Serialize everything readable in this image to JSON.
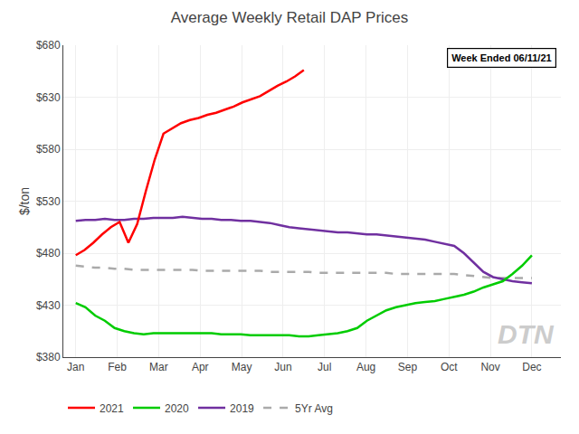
{
  "chart_data": {
    "type": "line",
    "title": "Average Weekly Retail DAP Prices",
    "ylabel": "$/ton",
    "annotations": [
      "Week Ended 06/11/21",
      "DTN"
    ],
    "xlim": [
      -0.3,
      11.7
    ],
    "xticks": [
      {
        "value": 0,
        "label": "Jan"
      },
      {
        "value": 1,
        "label": "Feb"
      },
      {
        "value": 2,
        "label": "Mar"
      },
      {
        "value": 3,
        "label": "Apr"
      },
      {
        "value": 4,
        "label": "May"
      },
      {
        "value": 5,
        "label": "Jun"
      },
      {
        "value": 6,
        "label": "Jul"
      },
      {
        "value": 7,
        "label": "Aug"
      },
      {
        "value": 8,
        "label": "Sep"
      },
      {
        "value": 9,
        "label": "Oct"
      },
      {
        "value": 10,
        "label": "Nov"
      },
      {
        "value": 11,
        "label": "Dec"
      }
    ],
    "ylim": [
      380,
      680
    ],
    "yticks": [
      {
        "value": 380,
        "label": "$380"
      },
      {
        "value": 430,
        "label": "$430"
      },
      {
        "value": 480,
        "label": "$480"
      },
      {
        "value": 530,
        "label": "$530"
      },
      {
        "value": 580,
        "label": "$580"
      },
      {
        "value": 630,
        "label": "$630"
      },
      {
        "value": 680,
        "label": "$680"
      }
    ],
    "grid": true,
    "series": [
      {
        "name": "2021",
        "color": "#ff0000",
        "line_style": "solid",
        "x": [
          0,
          0.2115,
          0.4231,
          0.6346,
          0.8462,
          1.0577,
          1.2692,
          1.4808,
          1.6923,
          1.9038,
          2.1154,
          2.3269,
          2.5385,
          2.75,
          2.9615,
          3.1731,
          3.3846,
          3.5962,
          3.8077,
          4.0192,
          4.2308,
          4.4423,
          4.6538,
          4.8654,
          5.0769,
          5.2885,
          5.5
        ],
        "values": [
          478,
          483,
          490,
          498,
          505,
          510,
          490,
          508,
          540,
          570,
          595,
          600,
          605,
          608,
          610,
          613,
          615,
          618,
          621,
          625,
          628,
          631,
          636,
          641,
          645,
          650,
          656
        ]
      },
      {
        "name": "2020",
        "color": "#00cc00",
        "line_style": "solid",
        "x": [
          0,
          0.234,
          0.4681,
          0.7021,
          0.9362,
          1.1702,
          1.4043,
          1.6383,
          1.8723,
          2.1064,
          2.3404,
          2.5745,
          2.8085,
          3.0426,
          3.2766,
          3.5106,
          3.7447,
          3.9787,
          4.2128,
          4.4468,
          4.6809,
          4.9149,
          5.1489,
          5.383,
          5.617,
          5.8511,
          6.0851,
          6.3191,
          6.5532,
          6.7872,
          7.0213,
          7.2553,
          7.4894,
          7.7234,
          7.9574,
          8.1915,
          8.4255,
          8.6596,
          8.8936,
          9.1277,
          9.3617,
          9.5957,
          9.8298,
          10.0638,
          10.2979,
          10.5319,
          10.766,
          11
        ],
        "values": [
          432,
          428,
          420,
          415,
          408,
          405,
          403,
          402,
          403,
          403,
          403,
          403,
          403,
          403,
          403,
          402,
          402,
          402,
          401,
          401,
          401,
          401,
          401,
          400,
          400,
          401,
          402,
          403,
          405,
          408,
          415,
          420,
          425,
          428,
          430,
          432,
          433,
          434,
          436,
          438,
          440,
          443,
          447,
          450,
          453,
          460,
          468,
          478
        ]
      },
      {
        "name": "2019",
        "color": "#7030a0",
        "line_style": "solid",
        "x": [
          0,
          0.234,
          0.4681,
          0.7021,
          0.9362,
          1.1702,
          1.4043,
          1.6383,
          1.8723,
          2.1064,
          2.3404,
          2.5745,
          2.8085,
          3.0426,
          3.2766,
          3.5106,
          3.7447,
          3.9787,
          4.2128,
          4.4468,
          4.6809,
          4.9149,
          5.1489,
          5.383,
          5.617,
          5.8511,
          6.0851,
          6.3191,
          6.5532,
          6.7872,
          7.0213,
          7.2553,
          7.4894,
          7.7234,
          7.9574,
          8.1915,
          8.4255,
          8.6596,
          8.8936,
          9.1277,
          9.3617,
          9.5957,
          9.8298,
          10.0638,
          10.2979,
          10.5319,
          10.766,
          11
        ],
        "values": [
          511,
          512,
          512,
          513,
          512,
          512,
          513,
          513,
          514,
          514,
          514,
          515,
          514,
          513,
          513,
          512,
          512,
          511,
          511,
          510,
          509,
          507,
          505,
          504,
          503,
          502,
          501,
          500,
          500,
          499,
          498,
          498,
          497,
          496,
          495,
          494,
          493,
          491,
          489,
          487,
          480,
          471,
          462,
          457,
          455,
          453,
          452,
          451
        ]
      },
      {
        "name": "5Yr Avg",
        "color": "#aaaaaa",
        "line_style": "dashed",
        "x": [
          0,
          0.234,
          0.4681,
          0.7021,
          0.9362,
          1.1702,
          1.4043,
          1.6383,
          1.8723,
          2.1064,
          2.3404,
          2.5745,
          2.8085,
          3.0426,
          3.2766,
          3.5106,
          3.7447,
          3.9787,
          4.2128,
          4.4468,
          4.6809,
          4.9149,
          5.1489,
          5.383,
          5.617,
          5.8511,
          6.0851,
          6.3191,
          6.5532,
          6.7872,
          7.0213,
          7.2553,
          7.4894,
          7.7234,
          7.9574,
          8.1915,
          8.4255,
          8.6596,
          8.8936,
          9.1277,
          9.3617,
          9.5957,
          9.8298,
          10.0638,
          10.2979,
          10.5319,
          10.766,
          11
        ],
        "values": [
          468,
          467,
          466,
          466,
          465,
          465,
          464,
          464,
          464,
          464,
          464,
          464,
          464,
          463,
          463,
          463,
          463,
          463,
          463,
          463,
          462,
          462,
          462,
          462,
          462,
          461,
          461,
          461,
          461,
          461,
          461,
          461,
          461,
          460,
          460,
          460,
          460,
          460,
          460,
          460,
          459,
          458,
          457,
          456,
          456,
          456,
          456,
          456
        ]
      }
    ]
  }
}
